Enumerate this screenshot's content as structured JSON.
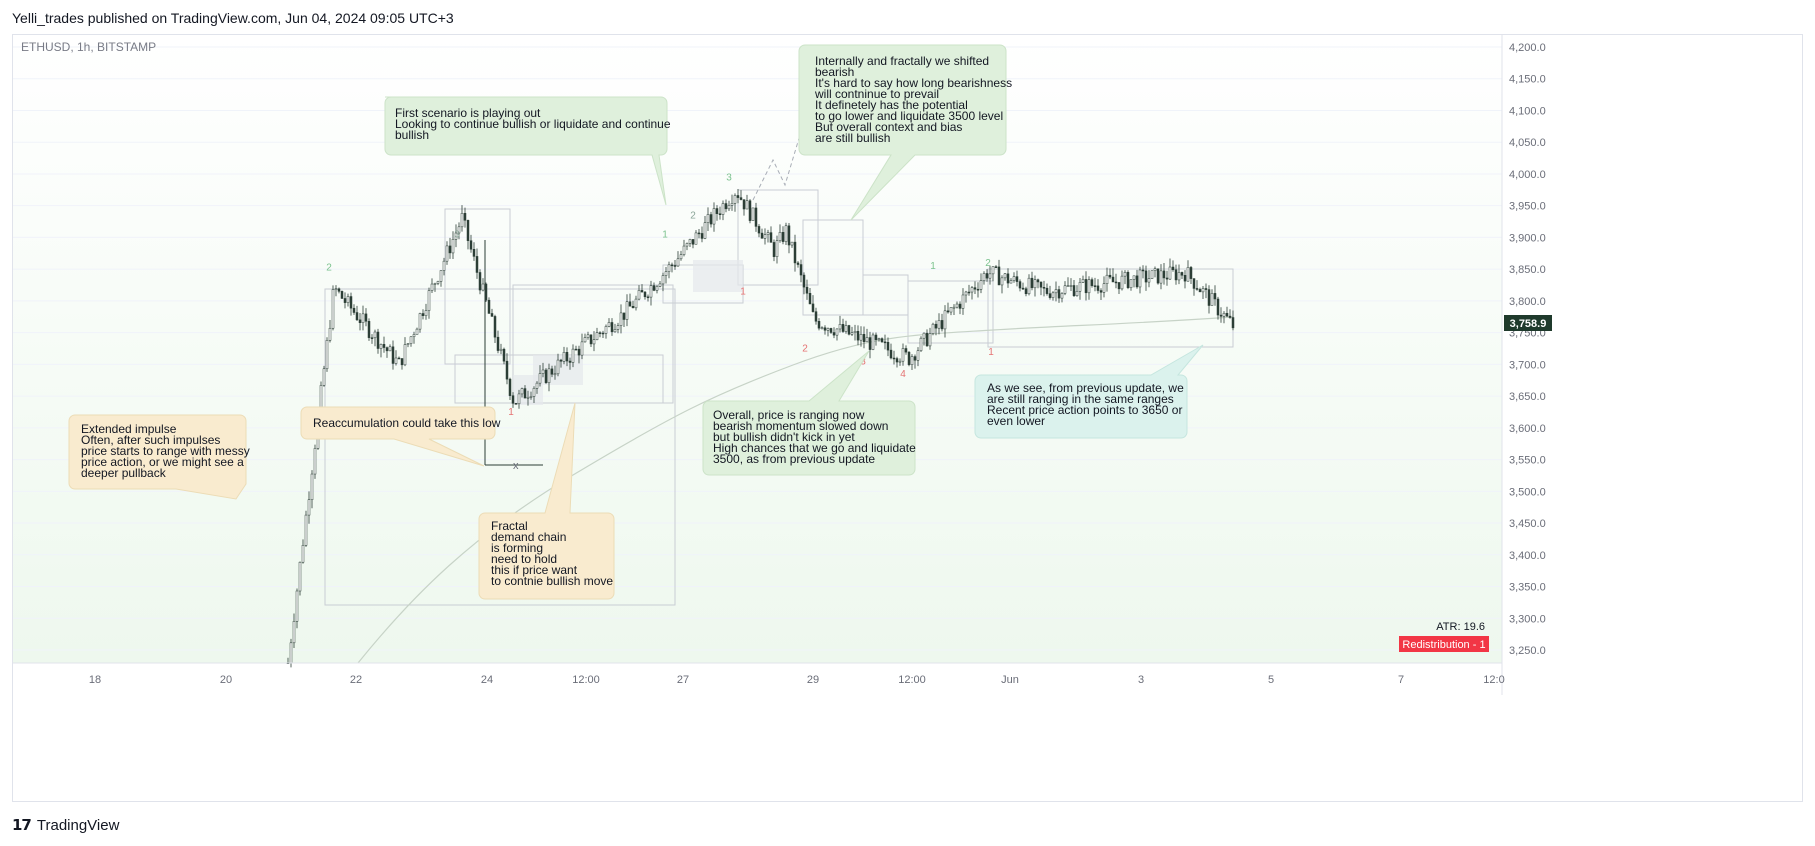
{
  "header": {
    "publisher": "Yelli_trades published on TradingView.com, Jun 04, 2024 09:05 UTC+3"
  },
  "footer": {
    "brand": "TradingView"
  },
  "symbol_label": "ETHUSD, 1h, BITSTAMP",
  "last_price": "3,758.9",
  "atr_label": "ATR: 19.6",
  "badge_label": "Redistribution - 1",
  "colors": {
    "candle": "#2c3e36",
    "grid": "#f0f3fa",
    "bg_top": "#ffffff",
    "bg_bottom": "#eef8ee",
    "green_note": "#dff0dc",
    "orange_note": "#f9ebcf",
    "teal_note": "#dbf2ed",
    "badge": "#f23645",
    "price_tag": "#1f3a2c",
    "wave_green": "#7cc28f",
    "wave_red": "#e57373",
    "wave_grey": "#8aa598"
  },
  "chart_data": {
    "type": "candlestick",
    "ylim": [
      3210,
      4215
    ],
    "y_ticks": [
      "4,200.0",
      "4,150.0",
      "4,100.0",
      "4,050.0",
      "4,000.0",
      "3,950.0",
      "3,900.0",
      "3,850.0",
      "3,800.0",
      "3,750.0",
      "3,700.0",
      "3,650.0",
      "3,600.0",
      "3,550.0",
      "3,500.0",
      "3,450.0",
      "3,400.0",
      "3,350.0",
      "3,300.0",
      "3,250.0"
    ],
    "x_ticks": [
      "18",
      "20",
      "22",
      "24",
      "12:00",
      "27",
      "29",
      "12:00",
      "Jun",
      "3",
      "5",
      "7",
      "12:0"
    ],
    "key_points": [
      {
        "t": "May 21 late",
        "price": 3230
      },
      {
        "t": "May 22",
        "price": 3820
      },
      {
        "t": "May 23",
        "price": 3700
      },
      {
        "t": "May 24 peak",
        "price": 3930
      },
      {
        "t": "May 24 low",
        "price": 3640
      },
      {
        "t": "May 25",
        "price": 3700
      },
      {
        "t": "May 26",
        "price": 3780
      },
      {
        "t": "May 27",
        "price": 3860
      },
      {
        "t": "May 28 peak",
        "price": 3975
      },
      {
        "t": "May 28",
        "price": 3880
      },
      {
        "t": "May 29",
        "price": 3910
      },
      {
        "t": "May 30",
        "price": 3770
      },
      {
        "t": "May 31",
        "price": 3710
      },
      {
        "t": "Jun 1 peak",
        "price": 3845
      },
      {
        "t": "Jun 2",
        "price": 3815
      },
      {
        "t": "Jun 3 peak",
        "price": 3845
      },
      {
        "t": "Jun 4",
        "price": 3759
      }
    ],
    "wave_labels": [
      {
        "text": "2",
        "price": 3848,
        "color": "green"
      },
      {
        "text": "3",
        "price": 3900,
        "color": "grey"
      },
      {
        "text": "1",
        "price": 3620,
        "color": "red"
      },
      {
        "text": "1",
        "price": 3900,
        "color": "green"
      },
      {
        "text": "2",
        "price": 3930,
        "color": "grey"
      },
      {
        "text": "3",
        "price": 3990,
        "color": "green"
      },
      {
        "text": "1",
        "price": 3810,
        "color": "red"
      },
      {
        "text": "2",
        "price": 3720,
        "color": "red"
      },
      {
        "text": "3",
        "price": 3700,
        "color": "red"
      },
      {
        "text": "4",
        "price": 3680,
        "color": "red"
      },
      {
        "text": "1",
        "price": 3850,
        "color": "green"
      },
      {
        "text": "2",
        "price": 3855,
        "color": "green"
      },
      {
        "text": "1",
        "price": 3715,
        "color": "red"
      }
    ],
    "x_marker": "x"
  },
  "notes": [
    {
      "id": "note-first-scenario",
      "lines": [
        "First scenario is playing out",
        "Looking to continue bullish or liquidate and continue",
        "bullish"
      ]
    },
    {
      "id": "note-internally",
      "lines": [
        "Internally and fractally we shifted",
        "bearish",
        "It's hard to say how long bearishness",
        "will contninue to prevail",
        "It definetely has the potential",
        "to go lower and liquidate 3500 level",
        "But overall context and bias",
        "are still bullish"
      ]
    },
    {
      "id": "note-extended",
      "lines": [
        "Extended impulse",
        "Often, after such impulses",
        "price starts to range with messy",
        "price action, or we might see a",
        "deeper pullback"
      ]
    },
    {
      "id": "note-reaccum",
      "lines": [
        "Reaccumulation could take this low"
      ]
    },
    {
      "id": "note-fractal",
      "lines": [
        "Fractal",
        "demand chain",
        "is forming",
        "need to hold",
        "this if price want",
        "to contnie bullish move"
      ]
    },
    {
      "id": "note-overall",
      "lines": [
        "Overall, price is ranging now",
        "bearish momentum slowed down",
        "but bullish didn't kick in yet",
        "High chances that we go and liquidate",
        "3500, as from previous update"
      ]
    },
    {
      "id": "note-as-we-see",
      "lines": [
        "As we see, from previous update, we",
        "are still ranging in the same ranges",
        "Recent price action points to 3650 or",
        "even lower"
      ]
    }
  ]
}
